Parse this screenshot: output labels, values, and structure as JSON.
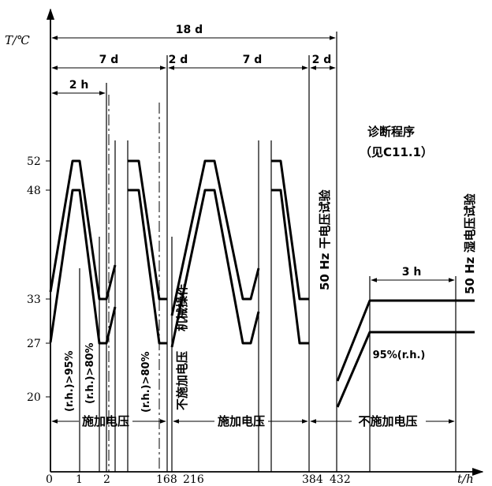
{
  "axes": {
    "y_label": "T/℃",
    "x_label": "t/h",
    "y_ticks": [
      "52",
      "48",
      "33",
      "27",
      "20"
    ],
    "x_ticks": [
      "0",
      "1",
      "2",
      "168",
      "216",
      "384",
      "432"
    ]
  },
  "durations": {
    "total": "18 d",
    "first_7d": "7 d",
    "first_2d": "2 d",
    "second_7d": "7 d",
    "second_2d": "2 d",
    "two_hours": "2 h",
    "three_hours": "3 h"
  },
  "annotations": {
    "rh_95": "(r.h.)>95%",
    "rh_80_a": "(r.h.)>80%",
    "rh_80_b": "(r.h.)>80%",
    "mechanical": "机械操作",
    "no_voltage_vertical": "不施加电压",
    "dry_test": "50 Hz 干电压试验",
    "diagnostic_title": "诊断程序",
    "diagnostic_ref": "（见C11.1）",
    "humid_test": "50 Hz 湿电压试验",
    "rh_95_plain": "95%(r.h.)"
  },
  "bottom_bar": {
    "apply_1": "施加电压",
    "apply_2": "施加电压",
    "not_apply": "不施加电压"
  }
}
